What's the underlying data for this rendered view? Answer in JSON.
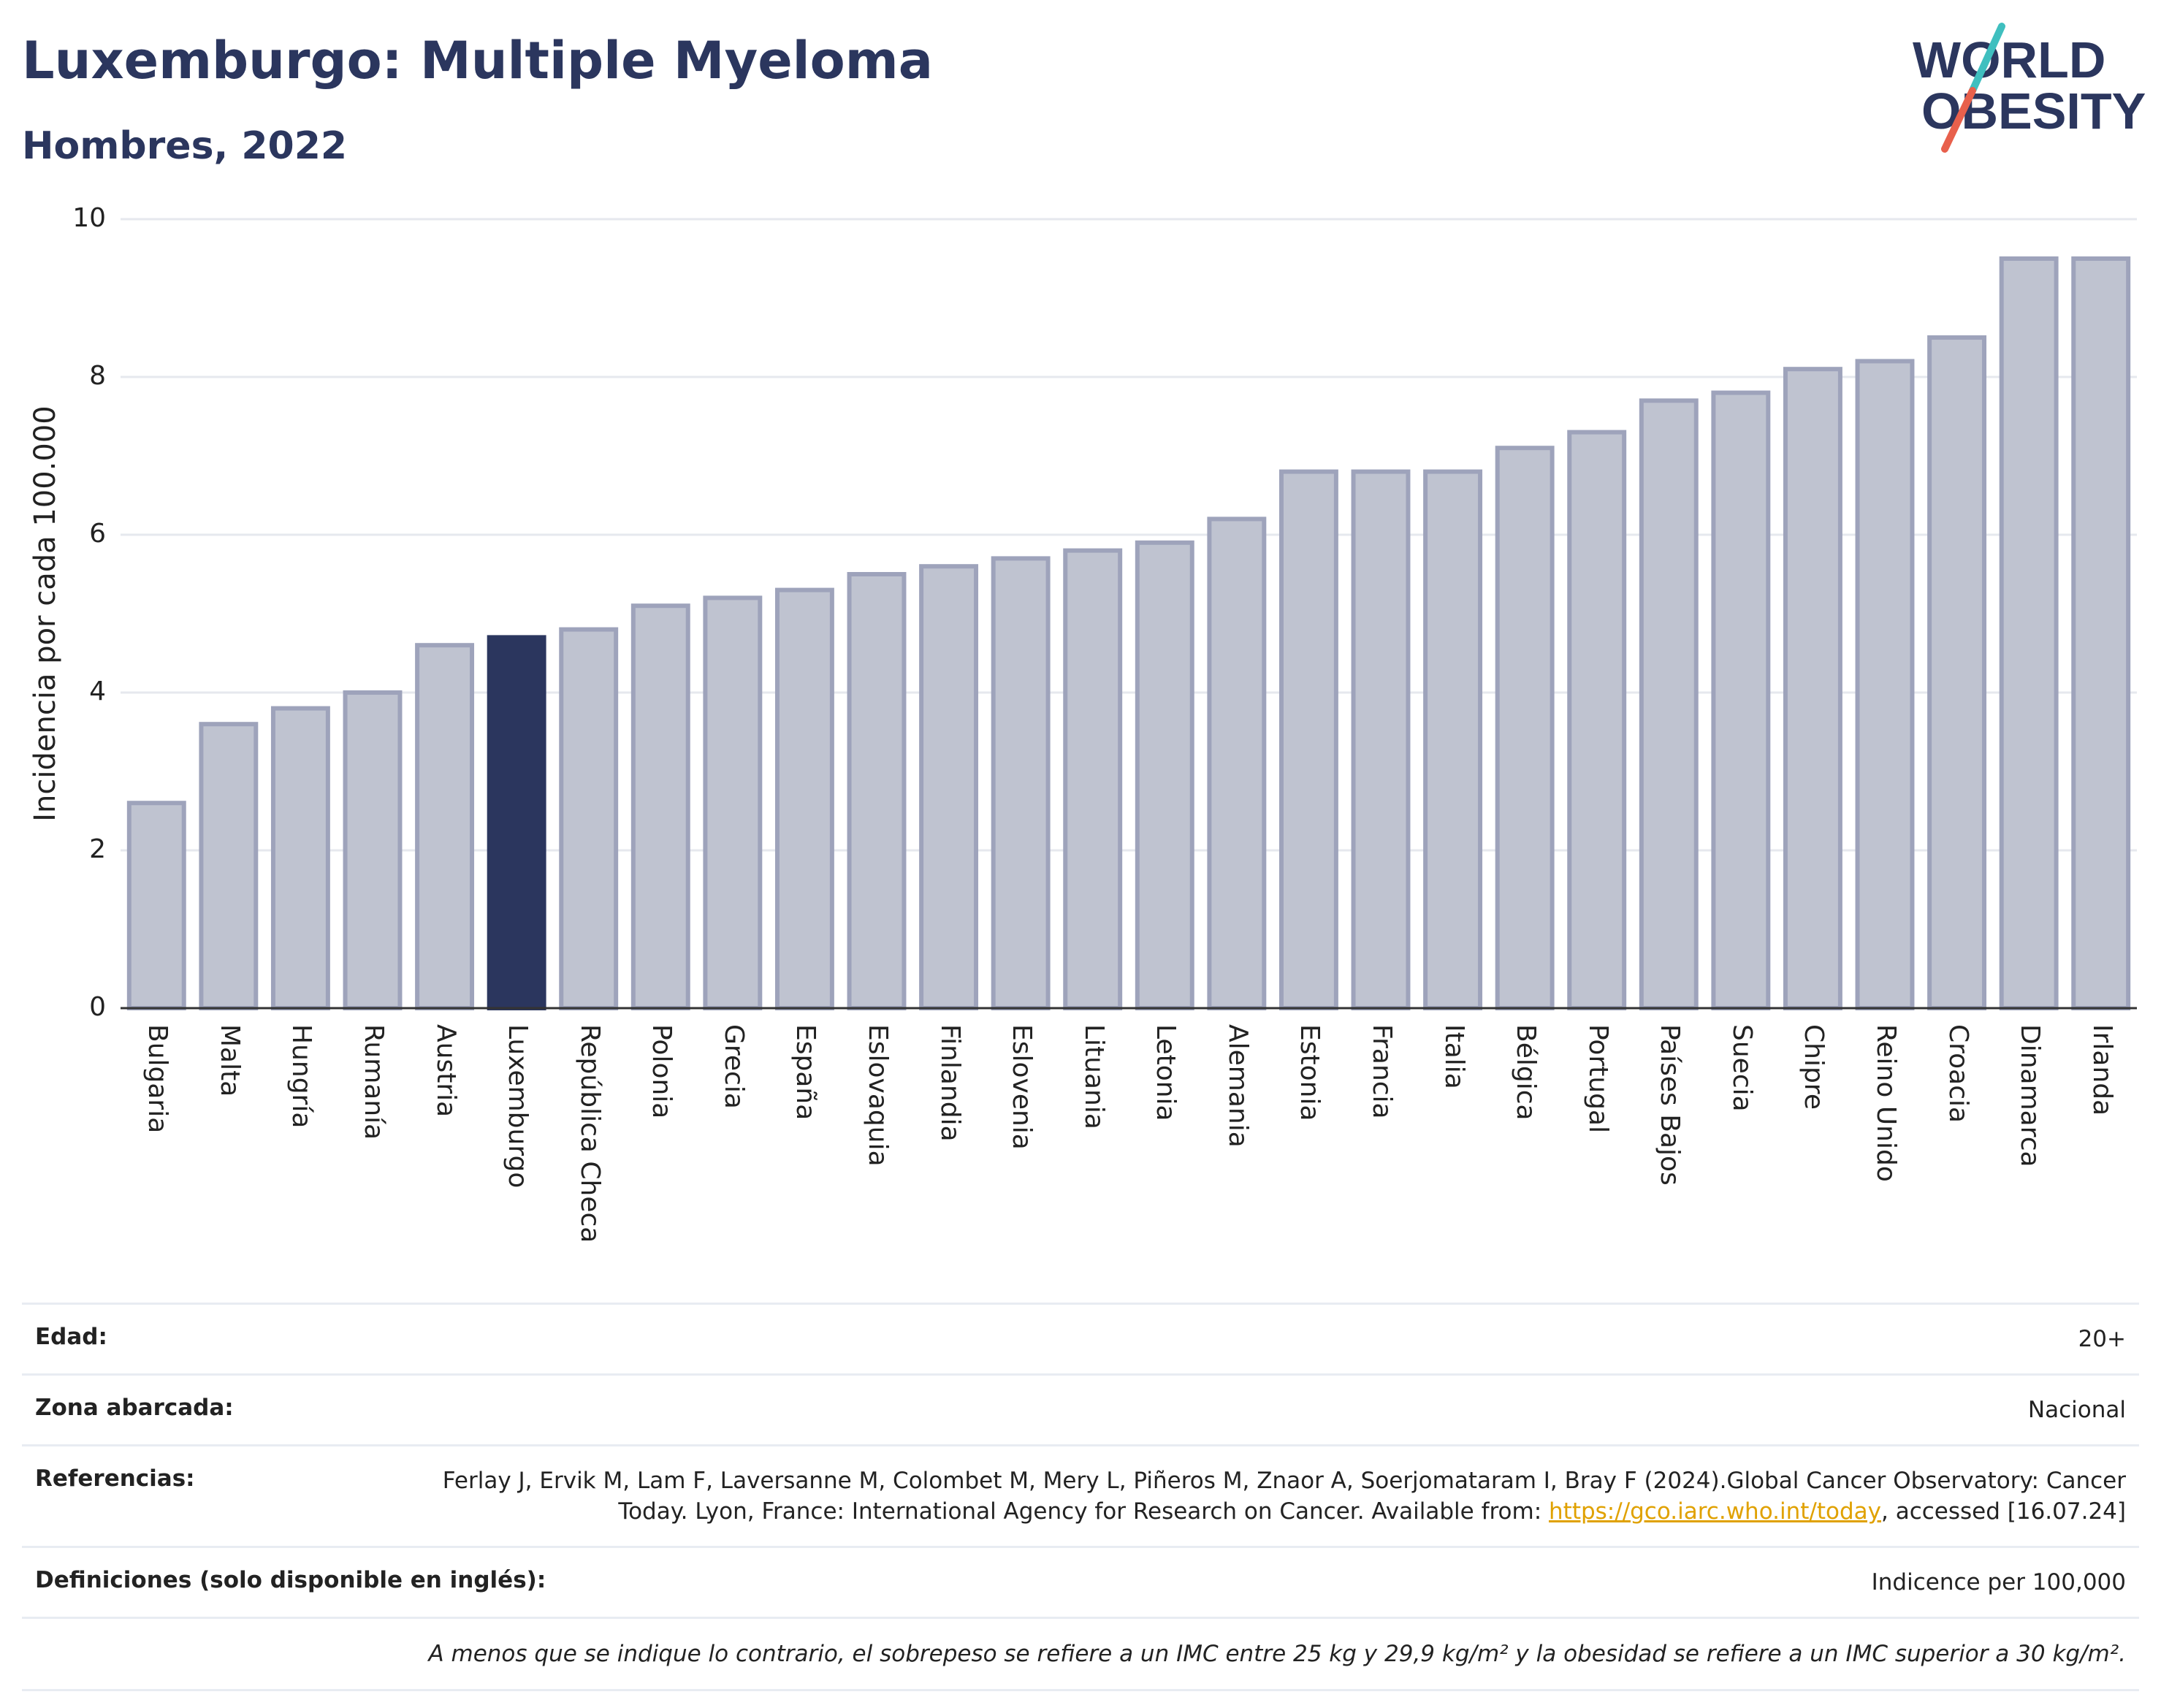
{
  "header": {
    "title": "Luxemburgo: Multiple Myeloma",
    "subtitle": "Hombres, 2022"
  },
  "logo": {
    "line1": "WORLD",
    "line2": "OBESITY",
    "colors": {
      "text": "#2b365e",
      "slash_top": "#3fbfbf",
      "slash_bottom": "#e8604c"
    }
  },
  "chart_data": {
    "type": "bar",
    "title": "Luxemburgo: Multiple Myeloma",
    "subtitle": "Hombres, 2022",
    "xlabel": "",
    "ylabel": "Incidencia por cada 100.000",
    "ylim": [
      0,
      10
    ],
    "yticks": [
      0,
      2,
      4,
      6,
      8,
      10
    ],
    "grid": true,
    "highlight": "Luxemburgo",
    "colors": {
      "bar": "#bfc3d0",
      "bar_edge": "#9ea3bb",
      "highlight": "#2b365e"
    },
    "categories": [
      "Bulgaria",
      "Malta",
      "Hungría",
      "Rumanía",
      "Austria",
      "Luxemburgo",
      "República Checa",
      "Polonia",
      "Grecia",
      "España",
      "Eslovaquia",
      "Finlandia",
      "Eslovenia",
      "Lituania",
      "Letonia",
      "Alemania",
      "Estonia",
      "Francia",
      "Italia",
      "Bélgica",
      "Portugal",
      "Países Bajos",
      "Suecia",
      "Chipre",
      "Reino Unido",
      "Croacia",
      "Dinamarca",
      "Irlanda"
    ],
    "values": [
      2.6,
      3.6,
      3.8,
      4.0,
      4.6,
      4.7,
      4.8,
      5.1,
      5.2,
      5.3,
      5.5,
      5.6,
      5.7,
      5.8,
      5.9,
      6.2,
      6.8,
      6.8,
      6.8,
      7.1,
      7.3,
      7.7,
      7.8,
      8.1,
      8.2,
      8.5,
      9.5,
      9.5
    ]
  },
  "meta": {
    "age_label": "Edad:",
    "age_value": "20+",
    "zone_label": "Zona abarcada:",
    "zone_value": "Nacional",
    "ref_label": "Referencias:",
    "ref_text_1": "Ferlay J, Ervik M, Lam F, Laversanne M, Colombet M, Mery L, Piñeros M, Znaor A, Soerjomataram I, Bray F (2024).Global Cancer Observatory: Cancer Today. Lyon, France: International Agency for Research on Cancer. Available from: ",
    "ref_link": "https://gco.iarc.who.int/today",
    "ref_text_2": ", accessed [16.07.24]",
    "def_label": "Definiciones (solo disponible en inglés):",
    "def_value": "Indicence per 100,000",
    "note": "A menos que se indique lo contrario, el sobrepeso se refiere a un IMC entre 25 kg y 29,9 kg/m² y la obesidad se refiere a un IMC superior a 30 kg/m²."
  }
}
